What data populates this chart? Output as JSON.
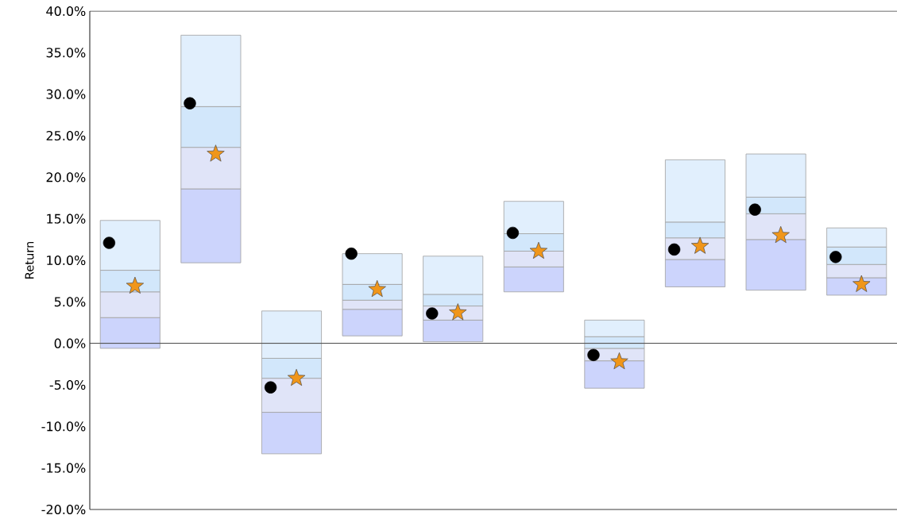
{
  "chart_data": {
    "type": "bar",
    "ylabel": "Return",
    "categories": [
      null,
      null,
      null,
      null,
      null,
      null,
      null,
      null,
      null,
      null
    ],
    "stacked": true,
    "series": [
      {
        "color": "#ccd4fc",
        "base": [
          -0.6,
          9.7,
          -13.3,
          0.9,
          0.2,
          6.2,
          -5.4,
          6.8,
          6.4,
          5.8
        ],
        "values": [
          3.7,
          8.9,
          5.0,
          3.2,
          2.6,
          3.0,
          3.3,
          3.3,
          6.1,
          2.1
        ]
      },
      {
        "color": "#e0e4f8",
        "values": [
          3.1,
          5.0,
          4.1,
          1.1,
          1.7,
          1.9,
          1.5,
          2.6,
          3.1,
          1.6
        ]
      },
      {
        "color": "#d2e7fb",
        "values": [
          2.6,
          4.9,
          2.4,
          1.9,
          1.4,
          2.1,
          1.4,
          1.9,
          2.0,
          2.1
        ]
      },
      {
        "color": "#e1effd",
        "values": [
          6.0,
          8.6,
          5.7,
          3.7,
          4.6,
          3.9,
          2.0,
          7.5,
          5.2,
          2.3
        ]
      },
      {
        "type": "scatter",
        "marker": "circle",
        "color": "#000000",
        "values": [
          12.1,
          28.9,
          -5.3,
          10.8,
          3.6,
          13.3,
          -1.4,
          11.3,
          16.1,
          10.4
        ]
      },
      {
        "type": "scatter",
        "marker": "star",
        "color": "#f0961a",
        "values": [
          6.9,
          22.8,
          -4.2,
          6.5,
          3.7,
          11.1,
          -2.2,
          11.7,
          13.0,
          7.1
        ]
      }
    ],
    "ylim": [
      -20,
      40
    ],
    "yticks": [
      {
        "value": -20,
        "label": "-20.0%"
      },
      {
        "value": -15,
        "label": "-15.0%"
      },
      {
        "value": -10,
        "label": "-10.0%"
      },
      {
        "value": -5,
        "label": "-5.0%"
      },
      {
        "value": 0,
        "label": "0.0%"
      },
      {
        "value": 5,
        "label": "5.0%"
      },
      {
        "value": 10,
        "label": "10.0%"
      },
      {
        "value": 15,
        "label": "15.0%"
      },
      {
        "value": 20,
        "label": "20.0%"
      },
      {
        "value": 25,
        "label": "25.0%"
      },
      {
        "value": 30,
        "label": "30.0%"
      },
      {
        "value": 35,
        "label": "35.0%"
      },
      {
        "value": 40,
        "label": "40.0%"
      }
    ],
    "ref_lines": [
      {
        "axis": "y",
        "value": 0,
        "color": "#555555"
      }
    ],
    "grid": false
  }
}
